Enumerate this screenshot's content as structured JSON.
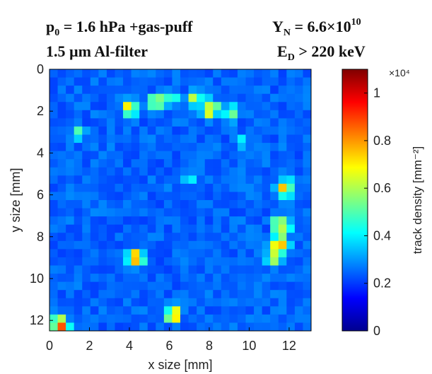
{
  "header": {
    "line1_left": {
      "base": "p",
      "sub": "0",
      "rest": " = 1.6 hPa +gas-puff"
    },
    "line1_right": {
      "base": "Y",
      "sub": "N",
      "rest": " = 6.6×10",
      "sup": "10"
    },
    "line2_left": "1.5 µm Al-filter",
    "line2_right": {
      "base": "E",
      "sub": "D",
      "rest": " > 220 keV"
    }
  },
  "chart_data": {
    "type": "heatmap",
    "xlabel": "x size [mm]",
    "ylabel": "y size [mm]",
    "x_ticks": [
      "0",
      "2",
      "4",
      "6",
      "8",
      "10",
      "12"
    ],
    "y_ticks": [
      "0",
      "2",
      "4",
      "6",
      "8",
      "10",
      "12"
    ],
    "xlim": [
      0,
      13.1
    ],
    "ylim": [
      0,
      12.5
    ],
    "y_axis_direction": "down",
    "grid_n": 32,
    "background_value": 1500,
    "hotspots": [
      {
        "x": 1.5,
        "y": 3.0,
        "value": 4000
      },
      {
        "x": 4.0,
        "y": 1.8,
        "value": 6000
      },
      {
        "x": 5.3,
        "y": 1.6,
        "value": 7000
      },
      {
        "x": 6.0,
        "y": 1.4,
        "value": 5000
      },
      {
        "x": 7.2,
        "y": 1.4,
        "value": 6000
      },
      {
        "x": 8.0,
        "y": 1.9,
        "value": 8000
      },
      {
        "x": 9.0,
        "y": 2.1,
        "value": 5000
      },
      {
        "x": 9.6,
        "y": 3.4,
        "value": 3000
      },
      {
        "x": 7.1,
        "y": 5.2,
        "value": 3500
      },
      {
        "x": 11.8,
        "y": 5.7,
        "value": 7000
      },
      {
        "x": 11.6,
        "y": 7.5,
        "value": 7500
      },
      {
        "x": 11.5,
        "y": 8.4,
        "value": 10000
      },
      {
        "x": 11.3,
        "y": 9.0,
        "value": 6000
      },
      {
        "x": 4.3,
        "y": 9.0,
        "value": 7000
      },
      {
        "x": 6.2,
        "y": 11.7,
        "value": 7000
      },
      {
        "x": 0.5,
        "y": 12.2,
        "value": 9000
      }
    ],
    "colorbar": {
      "label": "track density [mm⁻²]",
      "multiplier": "×10⁴",
      "ticks": [
        "0",
        "0.2",
        "0.4",
        "0.6",
        "0.8",
        "1"
      ],
      "min": 0,
      "max": 1.1
    },
    "colormap": "jet"
  }
}
